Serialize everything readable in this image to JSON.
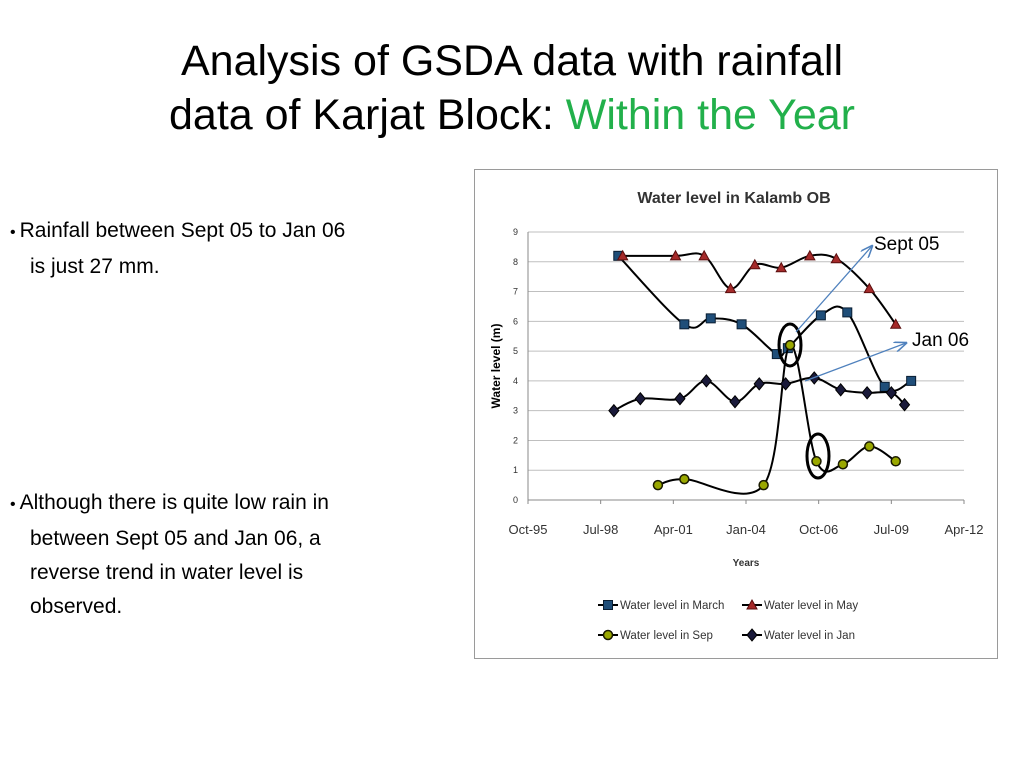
{
  "slide": {
    "title_line1": "Analysis of GSDA data with rainfall",
    "title_line2": "data of Karjat Block: ",
    "title_accent": "Within the Year",
    "bullets": [
      {
        "line1": "Rainfall  between  Sept 05 to Jan 06",
        "line2": "is just 27 mm."
      },
      {
        "line1": "Although there is quite low rain in",
        "line2": "between Sept 05 and Jan 06, a",
        "line3": "reverse trend in water level is",
        "line4": "observed."
      }
    ],
    "callouts": {
      "sept": "Sept 05",
      "jan": "Jan 06"
    },
    "colors": {
      "accent": "#22b04b"
    }
  },
  "chart_data": {
    "type": "line",
    "title": "Water level in Kalamb OB",
    "xlabel": "Years",
    "ylabel": "Water level (m)",
    "ylim": [
      0,
      9
    ],
    "yticks": [
      0,
      1,
      2,
      3,
      4,
      5,
      6,
      7,
      8,
      9
    ],
    "xticks": [
      "Oct-95",
      "Jul-98",
      "Apr-01",
      "Jan-04",
      "Oct-06",
      "Jul-09",
      "Apr-12"
    ],
    "xrange": [
      "1995-10",
      "2012-04"
    ],
    "grid": "horizontal",
    "legend": "bottom",
    "series": [
      {
        "name": "Water level in March",
        "color": "#1f3864",
        "marker": "square",
        "x": [
          "1999-03",
          "2001-09",
          "2002-09",
          "2003-11",
          "2005-03",
          "2005-08",
          "2006-11",
          "2007-11",
          "2009-04",
          "2010-04"
        ],
        "y": [
          8.2,
          5.9,
          6.1,
          5.9,
          4.9,
          5.1,
          6.2,
          6.3,
          3.8,
          4.0
        ]
      },
      {
        "name": "Water level in May",
        "color": "#8b1a1a",
        "marker": "triangle",
        "x": [
          "1999-05",
          "2001-05",
          "2002-06",
          "2003-06",
          "2004-05",
          "2005-05",
          "2006-06",
          "2007-06",
          "2008-09",
          "2009-09"
        ],
        "y": [
          8.2,
          8.2,
          8.2,
          7.1,
          7.9,
          7.8,
          8.2,
          8.1,
          7.1,
          5.9
        ]
      },
      {
        "name": "Water level in Sep",
        "color": "#556b00",
        "marker": "circle",
        "x": [
          "2000-09",
          "2001-09",
          "2004-09",
          "2005-09",
          "2006-09",
          "2007-09",
          "2008-09",
          "2009-09"
        ],
        "y": [
          0.5,
          0.7,
          0.5,
          5.2,
          1.3,
          1.2,
          1.8,
          1.3
        ]
      },
      {
        "name": "Water level in Jan",
        "color": "#1a1a3a",
        "marker": "diamond",
        "x": [
          "1999-01",
          "2000-01",
          "2001-07",
          "2002-07",
          "2003-08",
          "2004-07",
          "2005-07",
          "2006-08",
          "2007-08",
          "2008-08",
          "2009-07",
          "2010-01"
        ],
        "y": [
          3.0,
          3.4,
          3.4,
          4.0,
          3.3,
          3.9,
          3.9,
          4.1,
          3.7,
          3.6,
          3.6,
          3.2
        ]
      }
    ]
  }
}
